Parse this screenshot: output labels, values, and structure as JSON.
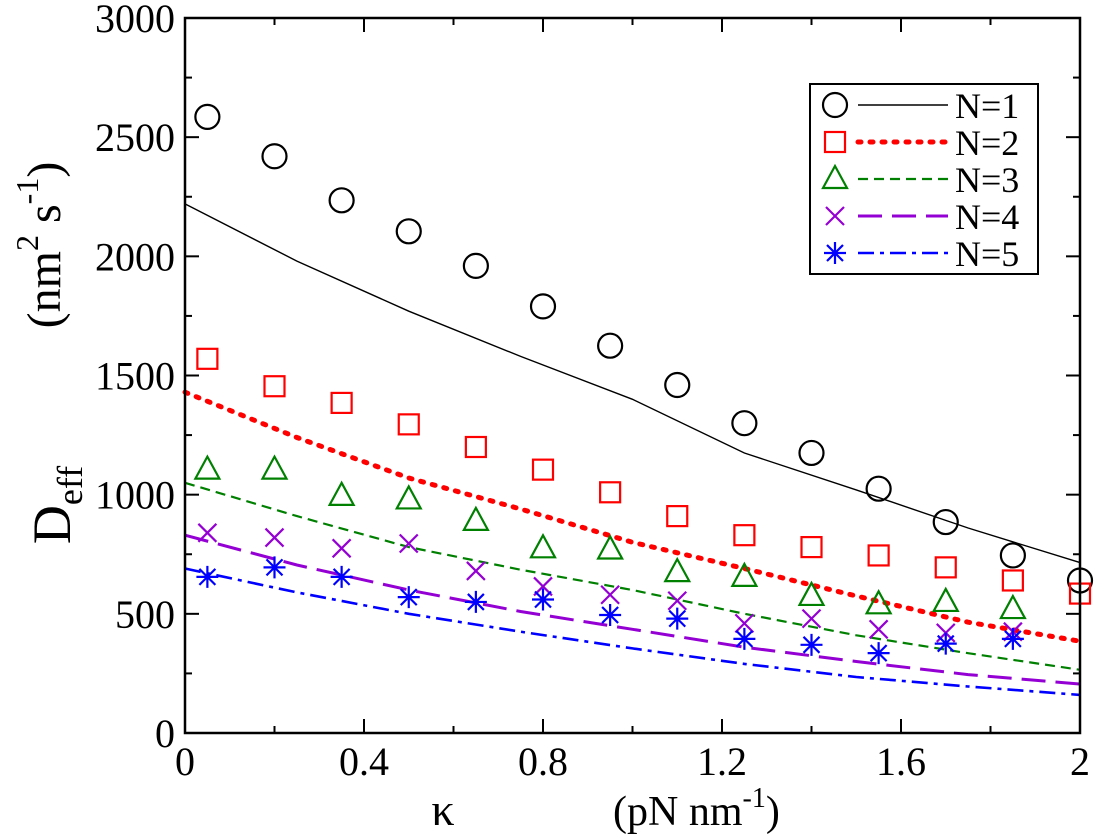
{
  "chart_data": {
    "type": "scatter",
    "xlabel": {
      "symbol": "κ",
      "unit": "(pN nm",
      "unit_sup": "-1",
      "unit_close": ")"
    },
    "ylabel": {
      "main": "D",
      "sub": "eff",
      "unit_open": "(nm",
      "sup1": "2",
      "mid": " s",
      "sup2": "-1",
      "unit_close": ")"
    },
    "xlim": [
      0,
      2
    ],
    "ylim": [
      0,
      3000
    ],
    "xticks": [
      {
        "value": 0,
        "label": "0"
      },
      {
        "value": 0.4,
        "label": "0.4"
      },
      {
        "value": 0.8,
        "label": "0.8"
      },
      {
        "value": 1.2,
        "label": "1.2"
      },
      {
        "value": 1.6,
        "label": "1.6"
      },
      {
        "value": 2,
        "label": "2"
      }
    ],
    "yticks": [
      {
        "value": 0,
        "label": "0"
      },
      {
        "value": 500,
        "label": "500"
      },
      {
        "value": 1000,
        "label": "1000"
      },
      {
        "value": 1500,
        "label": "1500"
      },
      {
        "value": 2000,
        "label": "2000"
      },
      {
        "value": 2500,
        "label": "2500"
      },
      {
        "value": 3000,
        "label": "3000"
      }
    ],
    "grid": false,
    "legend_position": "top-right",
    "series": [
      {
        "name": "N=1",
        "color": "#000000",
        "marker": "circle",
        "line_style": "solid",
        "points": {
          "x": [
            0.05,
            0.2,
            0.35,
            0.5,
            0.65,
            0.8,
            0.95,
            1.1,
            1.25,
            1.4,
            1.55,
            1.7,
            1.85,
            2.0
          ],
          "y": [
            2585,
            2420,
            2235,
            2105,
            1960,
            1790,
            1625,
            1460,
            1300,
            1175,
            1025,
            885,
            745,
            640
          ]
        },
        "curve": {
          "x": [
            0,
            0.25,
            0.5,
            0.75,
            1.0,
            1.25,
            1.5,
            1.75,
            2.0
          ],
          "y": [
            2220,
            1980,
            1770,
            1580,
            1400,
            1175,
            1020,
            860,
            715
          ]
        }
      },
      {
        "name": "N=2",
        "color": "#ff0000",
        "marker": "square",
        "line_style": "dotted",
        "points": {
          "x": [
            0.05,
            0.2,
            0.35,
            0.5,
            0.65,
            0.8,
            0.95,
            1.1,
            1.25,
            1.4,
            1.55,
            1.7,
            1.85,
            2.0
          ],
          "y": [
            1570,
            1455,
            1385,
            1295,
            1200,
            1105,
            1010,
            910,
            830,
            780,
            745,
            695,
            640,
            585
          ]
        },
        "curve": {
          "x": [
            0,
            0.25,
            0.5,
            0.75,
            1.0,
            1.25,
            1.5,
            1.75,
            2.0
          ],
          "y": [
            1430,
            1240,
            1070,
            940,
            800,
            690,
            575,
            465,
            385
          ]
        }
      },
      {
        "name": "N=3",
        "color": "#008000",
        "marker": "triangle",
        "line_style": "dashed",
        "points": {
          "x": [
            0.05,
            0.2,
            0.35,
            0.5,
            0.65,
            0.8,
            0.95,
            1.1,
            1.25,
            1.4,
            1.55,
            1.7,
            1.85
          ],
          "y": [
            1105,
            1105,
            995,
            980,
            890,
            775,
            770,
            675,
            655,
            575,
            540,
            550,
            520
          ]
        },
        "curve": {
          "x": [
            0,
            0.25,
            0.5,
            0.75,
            1.0,
            1.25,
            1.5,
            1.75,
            2.0
          ],
          "y": [
            1050,
            910,
            780,
            685,
            600,
            500,
            410,
            335,
            265
          ]
        }
      },
      {
        "name": "N=4",
        "color": "#9400d3",
        "marker": "x",
        "line_style": "long-dash",
        "points": {
          "x": [
            0.05,
            0.2,
            0.35,
            0.5,
            0.65,
            0.8,
            0.95,
            1.1,
            1.25,
            1.4,
            1.55,
            1.7,
            1.85
          ],
          "y": [
            840,
            820,
            775,
            795,
            680,
            615,
            580,
            555,
            460,
            480,
            435,
            420,
            425
          ]
        },
        "curve": {
          "x": [
            0,
            0.25,
            0.5,
            0.75,
            1.0,
            1.25,
            1.5,
            1.75,
            2.0
          ],
          "y": [
            830,
            705,
            600,
            510,
            435,
            360,
            300,
            245,
            205
          ]
        }
      },
      {
        "name": "N=5",
        "color": "#0000ff",
        "marker": "star",
        "line_style": "dash-dot",
        "points": {
          "x": [
            0.05,
            0.2,
            0.35,
            0.5,
            0.65,
            0.8,
            0.95,
            1.1,
            1.25,
            1.4,
            1.55,
            1.7,
            1.85
          ],
          "y": [
            655,
            695,
            655,
            570,
            550,
            560,
            495,
            480,
            395,
            370,
            335,
            375,
            395
          ]
        },
        "curve": {
          "x": [
            0,
            0.25,
            0.5,
            0.75,
            1.0,
            1.25,
            1.5,
            1.75,
            2.0
          ],
          "y": [
            690,
            590,
            500,
            425,
            355,
            290,
            235,
            195,
            160
          ]
        }
      }
    ]
  }
}
